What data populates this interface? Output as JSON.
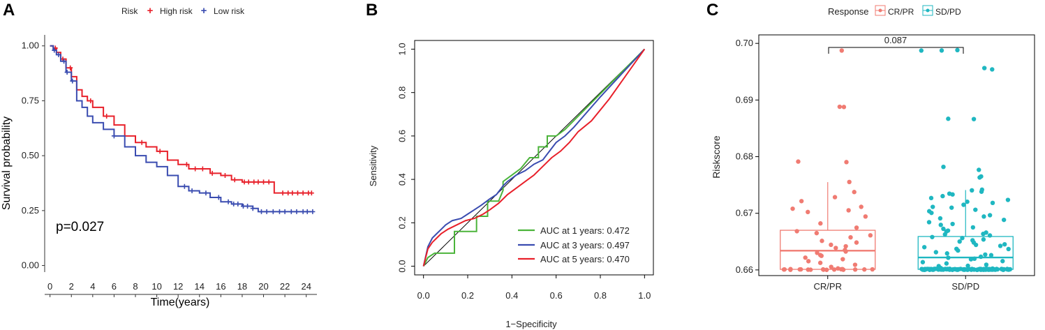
{
  "colors": {
    "high_risk": "#e8202a",
    "low_risk": "#3a4cb0",
    "auc1": "#4bb43a",
    "auc3": "#3a4cb0",
    "auc5": "#e8202a",
    "crpr": "#f07b72",
    "sdpd": "#1fb7c1"
  },
  "panels": {
    "a": "A",
    "b": "B",
    "c": "C"
  },
  "chart_data": [
    {
      "type": "line",
      "subtype": "kaplan-meier",
      "panel": "A",
      "legend_title": "Risk",
      "legend_position": "top",
      "xlabel": "Time(years)",
      "ylabel": "Survival probability",
      "xlim": [
        -0.5,
        25
      ],
      "ylim": [
        -0.03,
        1.05
      ],
      "xticks": [
        "0",
        "2",
        "4",
        "6",
        "8",
        "10",
        "12",
        "14",
        "16",
        "18",
        "20",
        "22",
        "24"
      ],
      "yticks": [
        "0.00",
        "0.25",
        "0.50",
        "0.75",
        "1.00"
      ],
      "annotation": "p=0.027",
      "series": [
        {
          "name": "High risk",
          "x": [
            0,
            0.3,
            0.6,
            1.0,
            1.5,
            2.0,
            2.5,
            3.0,
            3.5,
            4.0,
            5.0,
            6.0,
            7.0,
            8.0,
            9.0,
            10.0,
            11.0,
            12.0,
            13.0,
            14.0,
            15.0,
            16.0,
            17.0,
            18.0,
            19.0,
            20.0,
            21.0,
            22.0,
            23.0,
            24.5
          ],
          "y": [
            1.0,
            0.99,
            0.97,
            0.94,
            0.9,
            0.86,
            0.8,
            0.77,
            0.75,
            0.72,
            0.68,
            0.64,
            0.59,
            0.56,
            0.54,
            0.52,
            0.48,
            0.46,
            0.44,
            0.44,
            0.42,
            0.41,
            0.39,
            0.38,
            0.38,
            0.38,
            0.33,
            0.33,
            0.33,
            0.33
          ],
          "censor_x": [
            0.5,
            1.2,
            1.9,
            3.8,
            5.3,
            8.6,
            10.3,
            12.8,
            13.6,
            14.3,
            15.2,
            16.4,
            17.3,
            18.2,
            18.6,
            19.1,
            19.5,
            20.0,
            20.5,
            21.8,
            22.3,
            22.7,
            23.2,
            23.7,
            24.2,
            24.5
          ]
        },
        {
          "name": "Low risk",
          "x": [
            0,
            0.3,
            0.6,
            1.0,
            1.5,
            2.0,
            2.5,
            3.0,
            3.5,
            4.0,
            5.0,
            6.0,
            7.0,
            8.0,
            9.0,
            10.0,
            11.0,
            12.0,
            13.0,
            14.0,
            15.0,
            16.0,
            17.0,
            18.0,
            19.0,
            19.5,
            20.0,
            22.0,
            24.5
          ],
          "y": [
            1.0,
            0.98,
            0.96,
            0.93,
            0.88,
            0.84,
            0.75,
            0.72,
            0.68,
            0.65,
            0.62,
            0.59,
            0.54,
            0.5,
            0.47,
            0.45,
            0.41,
            0.36,
            0.34,
            0.33,
            0.31,
            0.29,
            0.28,
            0.27,
            0.26,
            0.245,
            0.245,
            0.245,
            0.245
          ],
          "censor_x": [
            0.4,
            0.8,
            1.3,
            1.6,
            2.1,
            6.0,
            12.6,
            13.3,
            14.6,
            15.8,
            16.7,
            17.2,
            17.6,
            18.1,
            18.5,
            19.0,
            19.8,
            20.3,
            20.9,
            21.5,
            22.0,
            22.6,
            23.1,
            23.7,
            24.1,
            24.6
          ]
        }
      ]
    },
    {
      "type": "line",
      "subtype": "roc",
      "panel": "B",
      "xlabel": "1−Specificity",
      "ylabel": "Sensitivity",
      "xlim": [
        -0.04,
        1.04
      ],
      "ylim": [
        -0.04,
        1.04
      ],
      "xticks": [
        "0.0",
        "0.2",
        "0.4",
        "0.6",
        "0.8",
        "1.0"
      ],
      "yticks": [
        "0.0",
        "0.2",
        "0.4",
        "0.6",
        "0.8",
        "1.0"
      ],
      "legend_position": "bottom-right",
      "legend_labels": [
        "AUC at 1 years: 0.472",
        "AUC at 3 years: 0.497",
        "AUC at 5 years: 0.470"
      ],
      "series": [
        {
          "name": "AUC at 1 years: 0.472",
          "x": [
            0,
            0.02,
            0.05,
            0.08,
            0.12,
            0.14,
            0.14,
            0.24,
            0.24,
            0.29,
            0.29,
            0.34,
            0.36,
            0.36,
            0.4,
            0.44,
            0.48,
            0.52,
            0.52,
            0.56,
            0.56,
            0.6,
            0.6,
            0.64,
            1.0
          ],
          "y": [
            0,
            0.04,
            0.06,
            0.06,
            0.06,
            0.06,
            0.16,
            0.16,
            0.23,
            0.23,
            0.3,
            0.3,
            0.35,
            0.39,
            0.42,
            0.45,
            0.5,
            0.5,
            0.55,
            0.55,
            0.6,
            0.6,
            0.6,
            0.63,
            1.0
          ]
        },
        {
          "name": "AUC at 3 years: 0.497",
          "x": [
            0,
            0.02,
            0.04,
            0.06,
            0.08,
            0.1,
            0.13,
            0.17,
            0.2,
            0.23,
            0.26,
            0.3,
            0.33,
            0.36,
            0.38,
            0.42,
            0.46,
            0.5,
            0.54,
            0.57,
            0.6,
            0.64,
            0.68,
            0.8,
            1.0
          ],
          "y": [
            0,
            0.09,
            0.13,
            0.15,
            0.17,
            0.19,
            0.21,
            0.22,
            0.24,
            0.26,
            0.28,
            0.31,
            0.33,
            0.37,
            0.39,
            0.42,
            0.44,
            0.47,
            0.49,
            0.53,
            0.57,
            0.6,
            0.64,
            0.78,
            1.0
          ]
        },
        {
          "name": "AUC at 5 years: 0.470",
          "x": [
            0,
            0.02,
            0.04,
            0.06,
            0.08,
            0.11,
            0.15,
            0.19,
            0.23,
            0.27,
            0.3,
            0.34,
            0.36,
            0.38,
            0.42,
            0.46,
            0.5,
            0.54,
            0.58,
            0.62,
            0.66,
            0.7,
            0.76,
            0.84,
            1.0
          ],
          "y": [
            0,
            0.08,
            0.11,
            0.13,
            0.15,
            0.17,
            0.19,
            0.21,
            0.22,
            0.24,
            0.26,
            0.29,
            0.31,
            0.33,
            0.36,
            0.39,
            0.42,
            0.46,
            0.5,
            0.53,
            0.57,
            0.62,
            0.67,
            0.77,
            1.0
          ]
        }
      ]
    },
    {
      "type": "box",
      "panel": "C",
      "legend_title": "Response",
      "legend_position": "top",
      "legend_labels": [
        "CR/PR",
        "SD/PD"
      ],
      "xlabel": "",
      "ylabel": "Riskscore",
      "ylim": [
        0.659,
        0.7015
      ],
      "yticks": [
        "0.66",
        "0.67",
        "0.68",
        "0.69",
        "0.70"
      ],
      "categories": [
        "CR/PR",
        "SD/PD"
      ],
      "comparison_label": "0.087",
      "groups": [
        {
          "name": "CR/PR",
          "min": 0.6601,
          "q1": 0.6601,
          "median": 0.6634,
          "q3": 0.667,
          "max": 0.6755,
          "points": [
            0.6987,
            0.6889,
            0.6888,
            0.6792,
            0.6791,
            0.6755,
            0.6737,
            0.6728,
            0.6722,
            0.6712,
            0.6708,
            0.6705,
            0.6702,
            0.6695,
            0.6682,
            0.6674,
            0.6668,
            0.6665,
            0.6661,
            0.6657,
            0.6652,
            0.6648,
            0.6645,
            0.6641,
            0.6638,
            0.6635,
            0.6632,
            0.663,
            0.6627,
            0.6624,
            0.6621,
            0.6618,
            0.6615,
            0.6612,
            0.6609,
            0.6606,
            0.6603,
            0.6601,
            0.6601,
            0.6601,
            0.6601,
            0.6601,
            0.6601,
            0.6601,
            0.6601,
            0.6601,
            0.6601,
            0.6601,
            0.6601,
            0.6601,
            0.6601,
            0.6601,
            0.6601,
            0.6601,
            0.6601
          ]
        },
        {
          "name": "SD/PD",
          "min": 0.6601,
          "q1": 0.6601,
          "median": 0.6622,
          "q3": 0.6659,
          "max": 0.6741,
          "points": [
            0.6988,
            0.6988,
            0.6987,
            0.6957,
            0.6955,
            0.6867,
            0.6866,
            0.6782,
            0.6777,
            0.6765,
            0.6764,
            0.6741,
            0.674,
            0.6738,
            0.6735,
            0.6733,
            0.673,
            0.6727,
            0.6724,
            0.6721,
            0.6718,
            0.6715,
            0.6712,
            0.6709,
            0.6706,
            0.6703,
            0.67,
            0.6697,
            0.6694,
            0.6691,
            0.6688,
            0.6685,
            0.6682,
            0.6679,
            0.6676,
            0.6673,
            0.667,
            0.6668,
            0.6666,
            0.6664,
            0.6662,
            0.666,
            0.6658,
            0.6656,
            0.6654,
            0.6652,
            0.665,
            0.6648,
            0.6646,
            0.6644,
            0.6642,
            0.664,
            0.6638,
            0.6636,
            0.6634,
            0.6632,
            0.663,
            0.6628,
            0.6626,
            0.6624,
            0.6622,
            0.662,
            0.6618,
            0.6616,
            0.6614,
            0.6612,
            0.661,
            0.6608,
            0.6606,
            0.6604,
            0.6602,
            0.6601,
            0.6601,
            0.6601,
            0.6601,
            0.6601,
            0.6601,
            0.6601,
            0.6601,
            0.6601,
            0.6601,
            0.6601,
            0.6601,
            0.6601,
            0.6601,
            0.6601,
            0.6601,
            0.6601,
            0.6601,
            0.6601,
            0.6601,
            0.6601,
            0.6601,
            0.6601,
            0.6601,
            0.6601,
            0.6601,
            0.6601,
            0.6601,
            0.6601,
            0.6601,
            0.6601,
            0.6601,
            0.6601,
            0.6601,
            0.6601,
            0.6601,
            0.6601,
            0.6601,
            0.6601,
            0.6601,
            0.6601,
            0.6601,
            0.6601,
            0.6601,
            0.6601,
            0.6601,
            0.6601,
            0.6601,
            0.6601,
            0.6601,
            0.6601,
            0.6601,
            0.6601,
            0.6601,
            0.6601,
            0.6601,
            0.6601,
            0.6601,
            0.6601,
            0.6601,
            0.6601,
            0.6601,
            0.6601,
            0.6601,
            0.6601,
            0.6601,
            0.6601,
            0.6601,
            0.6601,
            0.6601,
            0.6601,
            0.6601,
            0.6601,
            0.6601,
            0.6601,
            0.6601,
            0.6601,
            0.6601,
            0.6601,
            0.6601,
            0.6601,
            0.6601,
            0.6601,
            0.6601,
            0.6601,
            0.6601,
            0.6601,
            0.6601,
            0.6601,
            0.6601,
            0.6601,
            0.6601,
            0.6601,
            0.6601,
            0.6601,
            0.6601,
            0.6601,
            0.6601,
            0.6601,
            0.6601,
            0.6601,
            0.6601,
            0.6601,
            0.6601,
            0.6601,
            0.6601,
            0.6601,
            0.6601,
            0.6601,
            0.6601,
            0.6601
          ]
        }
      ]
    }
  ]
}
